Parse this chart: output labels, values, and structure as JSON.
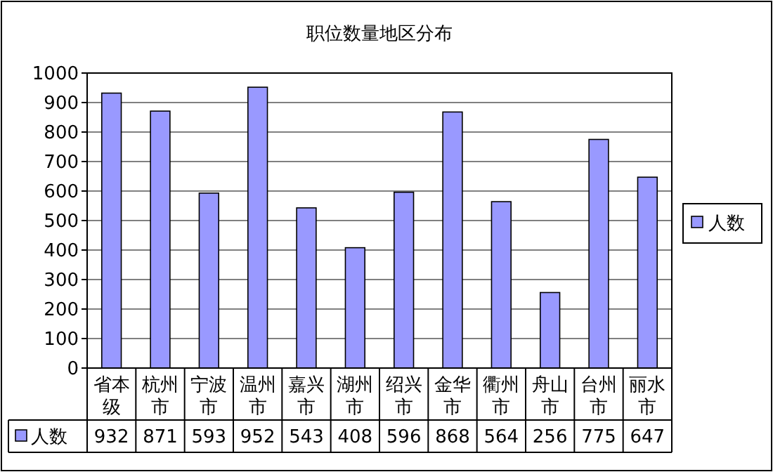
{
  "chart_data": {
    "type": "bar",
    "title": "职位数量地区分布",
    "categories": [
      "省本级",
      "杭州市",
      "宁波市",
      "温州市",
      "嘉兴市",
      "湖州市",
      "绍兴市",
      "金华市",
      "衢州市",
      "舟山市",
      "台州市",
      "丽水市"
    ],
    "series": [
      {
        "name": "人数",
        "color": "#9999ff",
        "values": [
          932,
          871,
          593,
          952,
          543,
          408,
          596,
          868,
          564,
          256,
          775,
          647
        ]
      }
    ],
    "ylim": [
      0,
      1000
    ],
    "yticks": [
      0,
      100,
      200,
      300,
      400,
      500,
      600,
      700,
      800,
      900,
      1000
    ],
    "grid": "y",
    "legend": "right",
    "data_labels": true
  }
}
